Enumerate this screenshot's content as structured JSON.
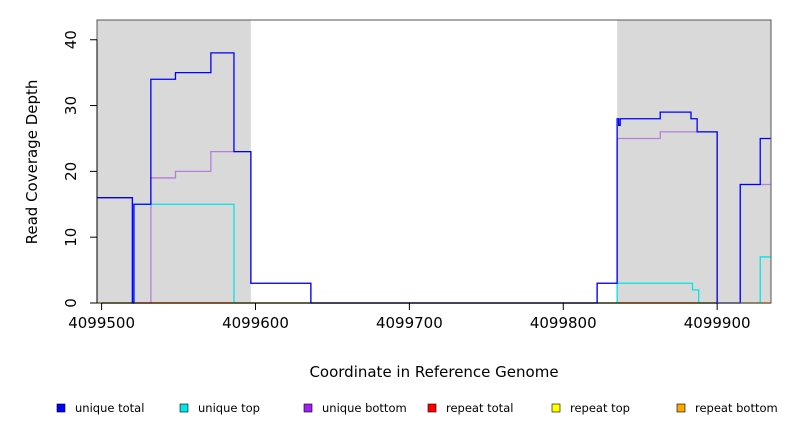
{
  "chart_data": {
    "type": "line",
    "title": "",
    "xlabel": "Coordinate in Reference Genome",
    "ylabel": "Read Coverage Depth",
    "xlim": [
      4099497,
      4099935
    ],
    "ylim": [
      0,
      43
    ],
    "x_ticks": [
      4099500,
      4099600,
      4099700,
      4099800,
      4099900
    ],
    "x_tick_labels": [
      "4099500",
      "4099600",
      "4099700",
      "4099800",
      "4099900"
    ],
    "y_ticks": [
      0,
      10,
      20,
      30,
      40
    ],
    "y_tick_labels": [
      "0",
      "10",
      "20",
      "30",
      "40"
    ],
    "grid": false,
    "shaded_regions": [
      {
        "x_start": 4099497,
        "x_end": 4099597,
        "color": "#d9d9d9"
      },
      {
        "x_start": 4099835,
        "x_end": 4099935,
        "color": "#d9d9d9"
      }
    ],
    "series": [
      {
        "name": "unique total",
        "color": "#0000ff",
        "points": [
          [
            4099497,
            16
          ],
          [
            4099520,
            16
          ],
          [
            4099520,
            0
          ],
          [
            4099521,
            0
          ],
          [
            4099521,
            15
          ],
          [
            4099532,
            15
          ],
          [
            4099532,
            34
          ],
          [
            4099548,
            34
          ],
          [
            4099548,
            35
          ],
          [
            4099571,
            35
          ],
          [
            4099571,
            38
          ],
          [
            4099586,
            38
          ],
          [
            4099586,
            23
          ],
          [
            4099597,
            23
          ],
          [
            4099597,
            3
          ],
          [
            4099636,
            3
          ],
          [
            4099636,
            0
          ],
          [
            4099822,
            0
          ],
          [
            4099822,
            3
          ],
          [
            4099835,
            3
          ],
          [
            4099835,
            28
          ],
          [
            4099836,
            28
          ],
          [
            4099836,
            27
          ],
          [
            4099837,
            27
          ],
          [
            4099837,
            28
          ],
          [
            4099863,
            28
          ],
          [
            4099863,
            29
          ],
          [
            4099883,
            29
          ],
          [
            4099883,
            28
          ],
          [
            4099887,
            28
          ],
          [
            4099887,
            26
          ],
          [
            4099900,
            26
          ],
          [
            4099900,
            0
          ],
          [
            4099915,
            0
          ],
          [
            4099915,
            18
          ],
          [
            4099928,
            18
          ],
          [
            4099928,
            25
          ],
          [
            4099935,
            25
          ]
        ]
      },
      {
        "name": "unique top",
        "color": "#00e5e5",
        "points": [
          [
            4099497,
            0
          ],
          [
            4099521,
            0
          ],
          [
            4099521,
            15
          ],
          [
            4099586,
            15
          ],
          [
            4099586,
            0
          ],
          [
            4099835,
            0
          ],
          [
            4099835,
            3
          ],
          [
            4099884,
            3
          ],
          [
            4099884,
            2
          ],
          [
            4099888,
            2
          ],
          [
            4099888,
            0
          ],
          [
            4099928,
            0
          ],
          [
            4099928,
            7
          ],
          [
            4099935,
            7
          ]
        ]
      },
      {
        "name": "unique bottom",
        "color": "#b57fd9",
        "points": [
          [
            4099497,
            16
          ],
          [
            4099520,
            16
          ],
          [
            4099520,
            0
          ],
          [
            4099532,
            0
          ],
          [
            4099532,
            19
          ],
          [
            4099548,
            19
          ],
          [
            4099548,
            20
          ],
          [
            4099571,
            20
          ],
          [
            4099571,
            23
          ],
          [
            4099597,
            23
          ],
          [
            4099597,
            3
          ],
          [
            4099636,
            3
          ],
          [
            4099636,
            0
          ],
          [
            4099822,
            0
          ],
          [
            4099822,
            3
          ],
          [
            4099835,
            3
          ],
          [
            4099835,
            25
          ],
          [
            4099863,
            25
          ],
          [
            4099863,
            26
          ],
          [
            4099900,
            26
          ],
          [
            4099900,
            0
          ],
          [
            4099915,
            0
          ],
          [
            4099915,
            18
          ],
          [
            4099935,
            18
          ]
        ]
      },
      {
        "name": "repeat total",
        "color": "#ff0000",
        "points": [
          [
            4099497,
            0
          ],
          [
            4099935,
            0
          ]
        ]
      },
      {
        "name": "repeat top",
        "color": "#ffff00",
        "points": [
          [
            4099497,
            0
          ],
          [
            4099935,
            0
          ]
        ]
      },
      {
        "name": "repeat bottom",
        "color": "#ffa500",
        "points": [
          [
            4099497,
            0
          ],
          [
            4099935,
            0
          ]
        ]
      }
    ],
    "legend": {
      "placement": "bottom",
      "entries": [
        {
          "label": "unique total",
          "color": "#0000ff"
        },
        {
          "label": "unique top",
          "color": "#00e5e5"
        },
        {
          "label": "unique bottom",
          "color": "#a020f0"
        },
        {
          "label": "repeat total",
          "color": "#ff0000"
        },
        {
          "label": "repeat top",
          "color": "#ffff00"
        },
        {
          "label": "repeat bottom",
          "color": "#ffa500"
        }
      ]
    }
  }
}
